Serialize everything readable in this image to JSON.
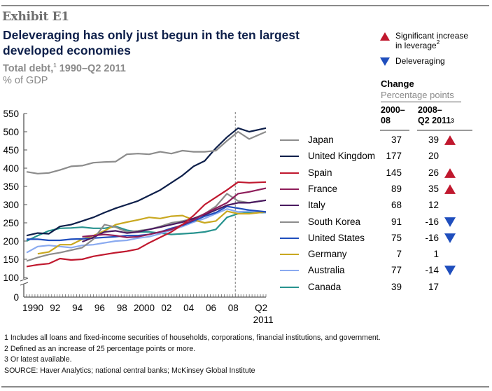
{
  "exhibit_label": "Exhibit E1",
  "title": "Deleveraging has only just begun in the ten largest developed economies",
  "subtitle": {
    "text": "Total debt,",
    "sup": "1",
    "rest": " 1990–Q2 2011"
  },
  "unit": "% of GDP",
  "key": {
    "up_label_line1": "Significant increase",
    "up_label_line2": "in leverage",
    "up_label_sup": "2",
    "down_label": "Deleveraging",
    "up_color": "#c0182e",
    "down_color": "#1f4ebd"
  },
  "change": {
    "title": "Change",
    "subtitle": "Percentage points",
    "col1_line1": "2000–",
    "col1_line2": "08",
    "col2_line1": "2008–",
    "col2_line2": "Q2 2011",
    "col2_sup": "3"
  },
  "footnotes": [
    "1  Includes all loans and fixed-income securities of households, corporations, financial institutions, and government.",
    "2  Defined as an increase of 25 percentage points or more.",
    "3  Or latest available.",
    "SOURCE: Haver Analytics; national central banks; McKinsey Global Institute"
  ],
  "chart_data": {
    "type": "line",
    "title": "Total debt, 1990–Q2 2011",
    "ylabel": "% of GDP",
    "xlabel": "",
    "ylim": [
      0,
      550
    ],
    "y_axis_break": [
      0,
      100
    ],
    "yticks": [
      0,
      100,
      150,
      200,
      250,
      300,
      350,
      400,
      450,
      500,
      550
    ],
    "xlim": [
      1990,
      2011.5
    ],
    "xtick_labels": [
      {
        "x": 1990,
        "label": "1990"
      },
      {
        "x": 1992,
        "label": "92"
      },
      {
        "x": 1994,
        "label": "94"
      },
      {
        "x": 1996,
        "label": "96"
      },
      {
        "x": 1998,
        "label": "98"
      },
      {
        "x": 2000,
        "label": "2000"
      },
      {
        "x": 2002,
        "label": "02"
      },
      {
        "x": 2004,
        "label": "04"
      },
      {
        "x": 2006,
        "label": "06"
      },
      {
        "x": 2008,
        "label": "08"
      },
      {
        "x": 2010.5,
        "label": "Q2",
        "label2": "2011"
      }
    ],
    "reference_line": {
      "x": 2008.75,
      "style": "dashed"
    },
    "grid": false,
    "legend_position": "right",
    "x": [
      1990,
      1991,
      1992,
      1993,
      1994,
      1995,
      1996,
      1997,
      1998,
      1999,
      2000,
      2001,
      2002,
      2003,
      2004,
      2005,
      2006,
      2007,
      2008,
      2009,
      2010,
      2011.5
    ],
    "series": [
      {
        "name": "Japan",
        "color": "#8c8c8c",
        "change_2000_08": "37",
        "change_2008_q2_2011": "39",
        "indicator": "up",
        "values": [
          390,
          385,
          387,
          395,
          405,
          407,
          415,
          417,
          418,
          438,
          440,
          438,
          445,
          440,
          448,
          445,
          445,
          448,
          475,
          500,
          480,
          500
        ]
      },
      {
        "name": "United Kingdom",
        "color": "#0d1f4a",
        "change_2000_08": "177",
        "change_2008_q2_2011": "20",
        "indicator": "none",
        "values": [
          215,
          222,
          220,
          240,
          245,
          255,
          265,
          278,
          290,
          300,
          310,
          325,
          340,
          360,
          380,
          405,
          420,
          455,
          485,
          510,
          500,
          510
        ]
      },
      {
        "name": "Spain",
        "color": "#c0182e",
        "change_2000_08": "145",
        "change_2008_q2_2011": "26",
        "indicator": "up",
        "values": [
          130,
          135,
          138,
          152,
          148,
          150,
          158,
          163,
          168,
          172,
          178,
          195,
          210,
          225,
          245,
          270,
          300,
          320,
          340,
          362,
          360,
          362
        ]
      },
      {
        "name": "France",
        "color": "#8e1d5a",
        "change_2000_08": "89",
        "change_2008_q2_2011": "35",
        "indicator": "up",
        "values": [
          null,
          null,
          null,
          null,
          null,
          212,
          215,
          218,
          215,
          210,
          212,
          218,
          225,
          232,
          245,
          258,
          275,
          290,
          305,
          330,
          335,
          345
        ]
      },
      {
        "name": "Italy",
        "color": "#4a1a60",
        "change_2000_08": "68",
        "change_2008_q2_2011": "12",
        "indicator": "none",
        "values": [
          null,
          null,
          null,
          null,
          null,
          198,
          210,
          225,
          228,
          222,
          225,
          232,
          238,
          245,
          252,
          262,
          272,
          285,
          298,
          305,
          305,
          312
        ]
      },
      {
        "name": "South Korea",
        "color": "#8c8c8c",
        "change_2000_08": "91",
        "change_2008_q2_2011": "-16",
        "indicator": "down",
        "values": [
          145,
          155,
          163,
          168,
          175,
          182,
          205,
          245,
          238,
          225,
          228,
          232,
          240,
          250,
          255,
          262,
          275,
          295,
          330,
          310,
          305,
          312
        ]
      },
      {
        "name": "United States",
        "color": "#1f4ebd",
        "change_2000_08": "75",
        "change_2008_q2_2011": "-16",
        "indicator": "down",
        "values": [
          205,
          205,
          202,
          202,
          205,
          206,
          208,
          210,
          212,
          215,
          215,
          218,
          225,
          235,
          243,
          255,
          268,
          278,
          295,
          290,
          285,
          280
        ]
      },
      {
        "name": "Germany",
        "color": "#c9a820",
        "change_2000_08": "7",
        "change_2008_q2_2011": "1",
        "indicator": "none",
        "values": [
          null,
          165,
          170,
          190,
          190,
          205,
          215,
          228,
          245,
          252,
          258,
          265,
          262,
          268,
          270,
          258,
          250,
          255,
          282,
          275,
          275,
          280
        ]
      },
      {
        "name": "Australia",
        "color": "#8aaaf0",
        "change_2000_08": "77",
        "change_2008_q2_2011": "-14",
        "indicator": "down",
        "values": [
          168,
          185,
          188,
          185,
          182,
          188,
          190,
          195,
          200,
          202,
          208,
          212,
          220,
          230,
          240,
          252,
          262,
          275,
          288,
          280,
          282,
          278
        ]
      },
      {
        "name": "Canada",
        "color": "#28938f",
        "change_2000_08": "39",
        "change_2008_q2_2011": "17",
        "indicator": "none",
        "values": [
          200,
          215,
          228,
          235,
          236,
          238,
          235,
          235,
          240,
          230,
          225,
          225,
          222,
          218,
          220,
          222,
          225,
          232,
          265,
          275,
          278,
          278
        ]
      }
    ]
  }
}
